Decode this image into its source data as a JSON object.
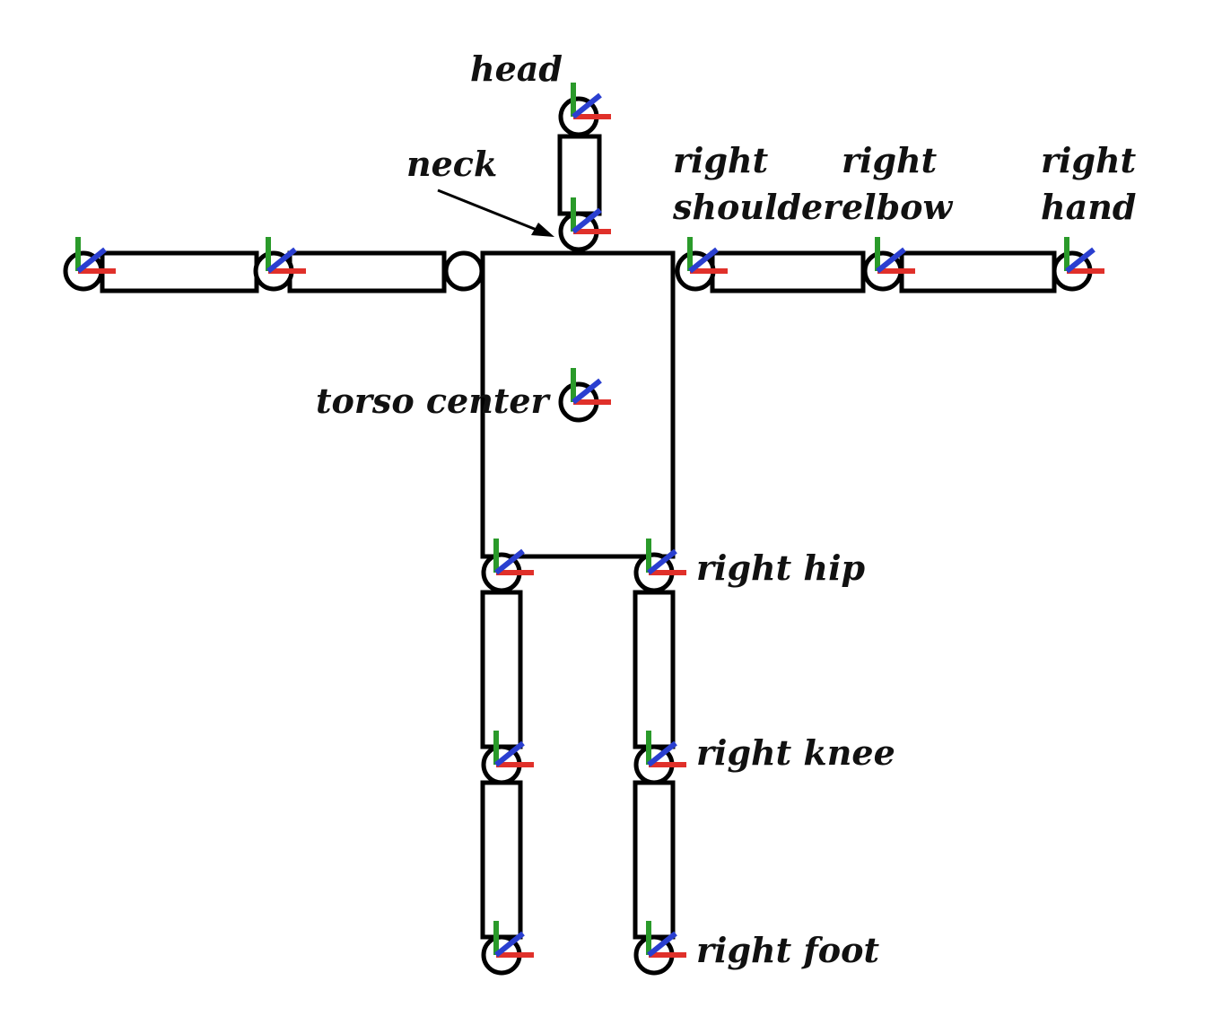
{
  "labels": {
    "head": "head",
    "neck": "neck",
    "torso_center": "torso center",
    "right_shoulder_1": "right",
    "right_shoulder_2": "shoulder",
    "right_elbow_1": "right",
    "right_elbow_2": "elbow",
    "right_hand_1": "right",
    "right_hand_2": "hand",
    "right_hip": "right hip",
    "right_knee": "right knee",
    "right_foot": "right foot"
  },
  "axis_colors": {
    "x": "#e0302a",
    "y": "#2a9a2a",
    "z": "#2a3fd0"
  }
}
